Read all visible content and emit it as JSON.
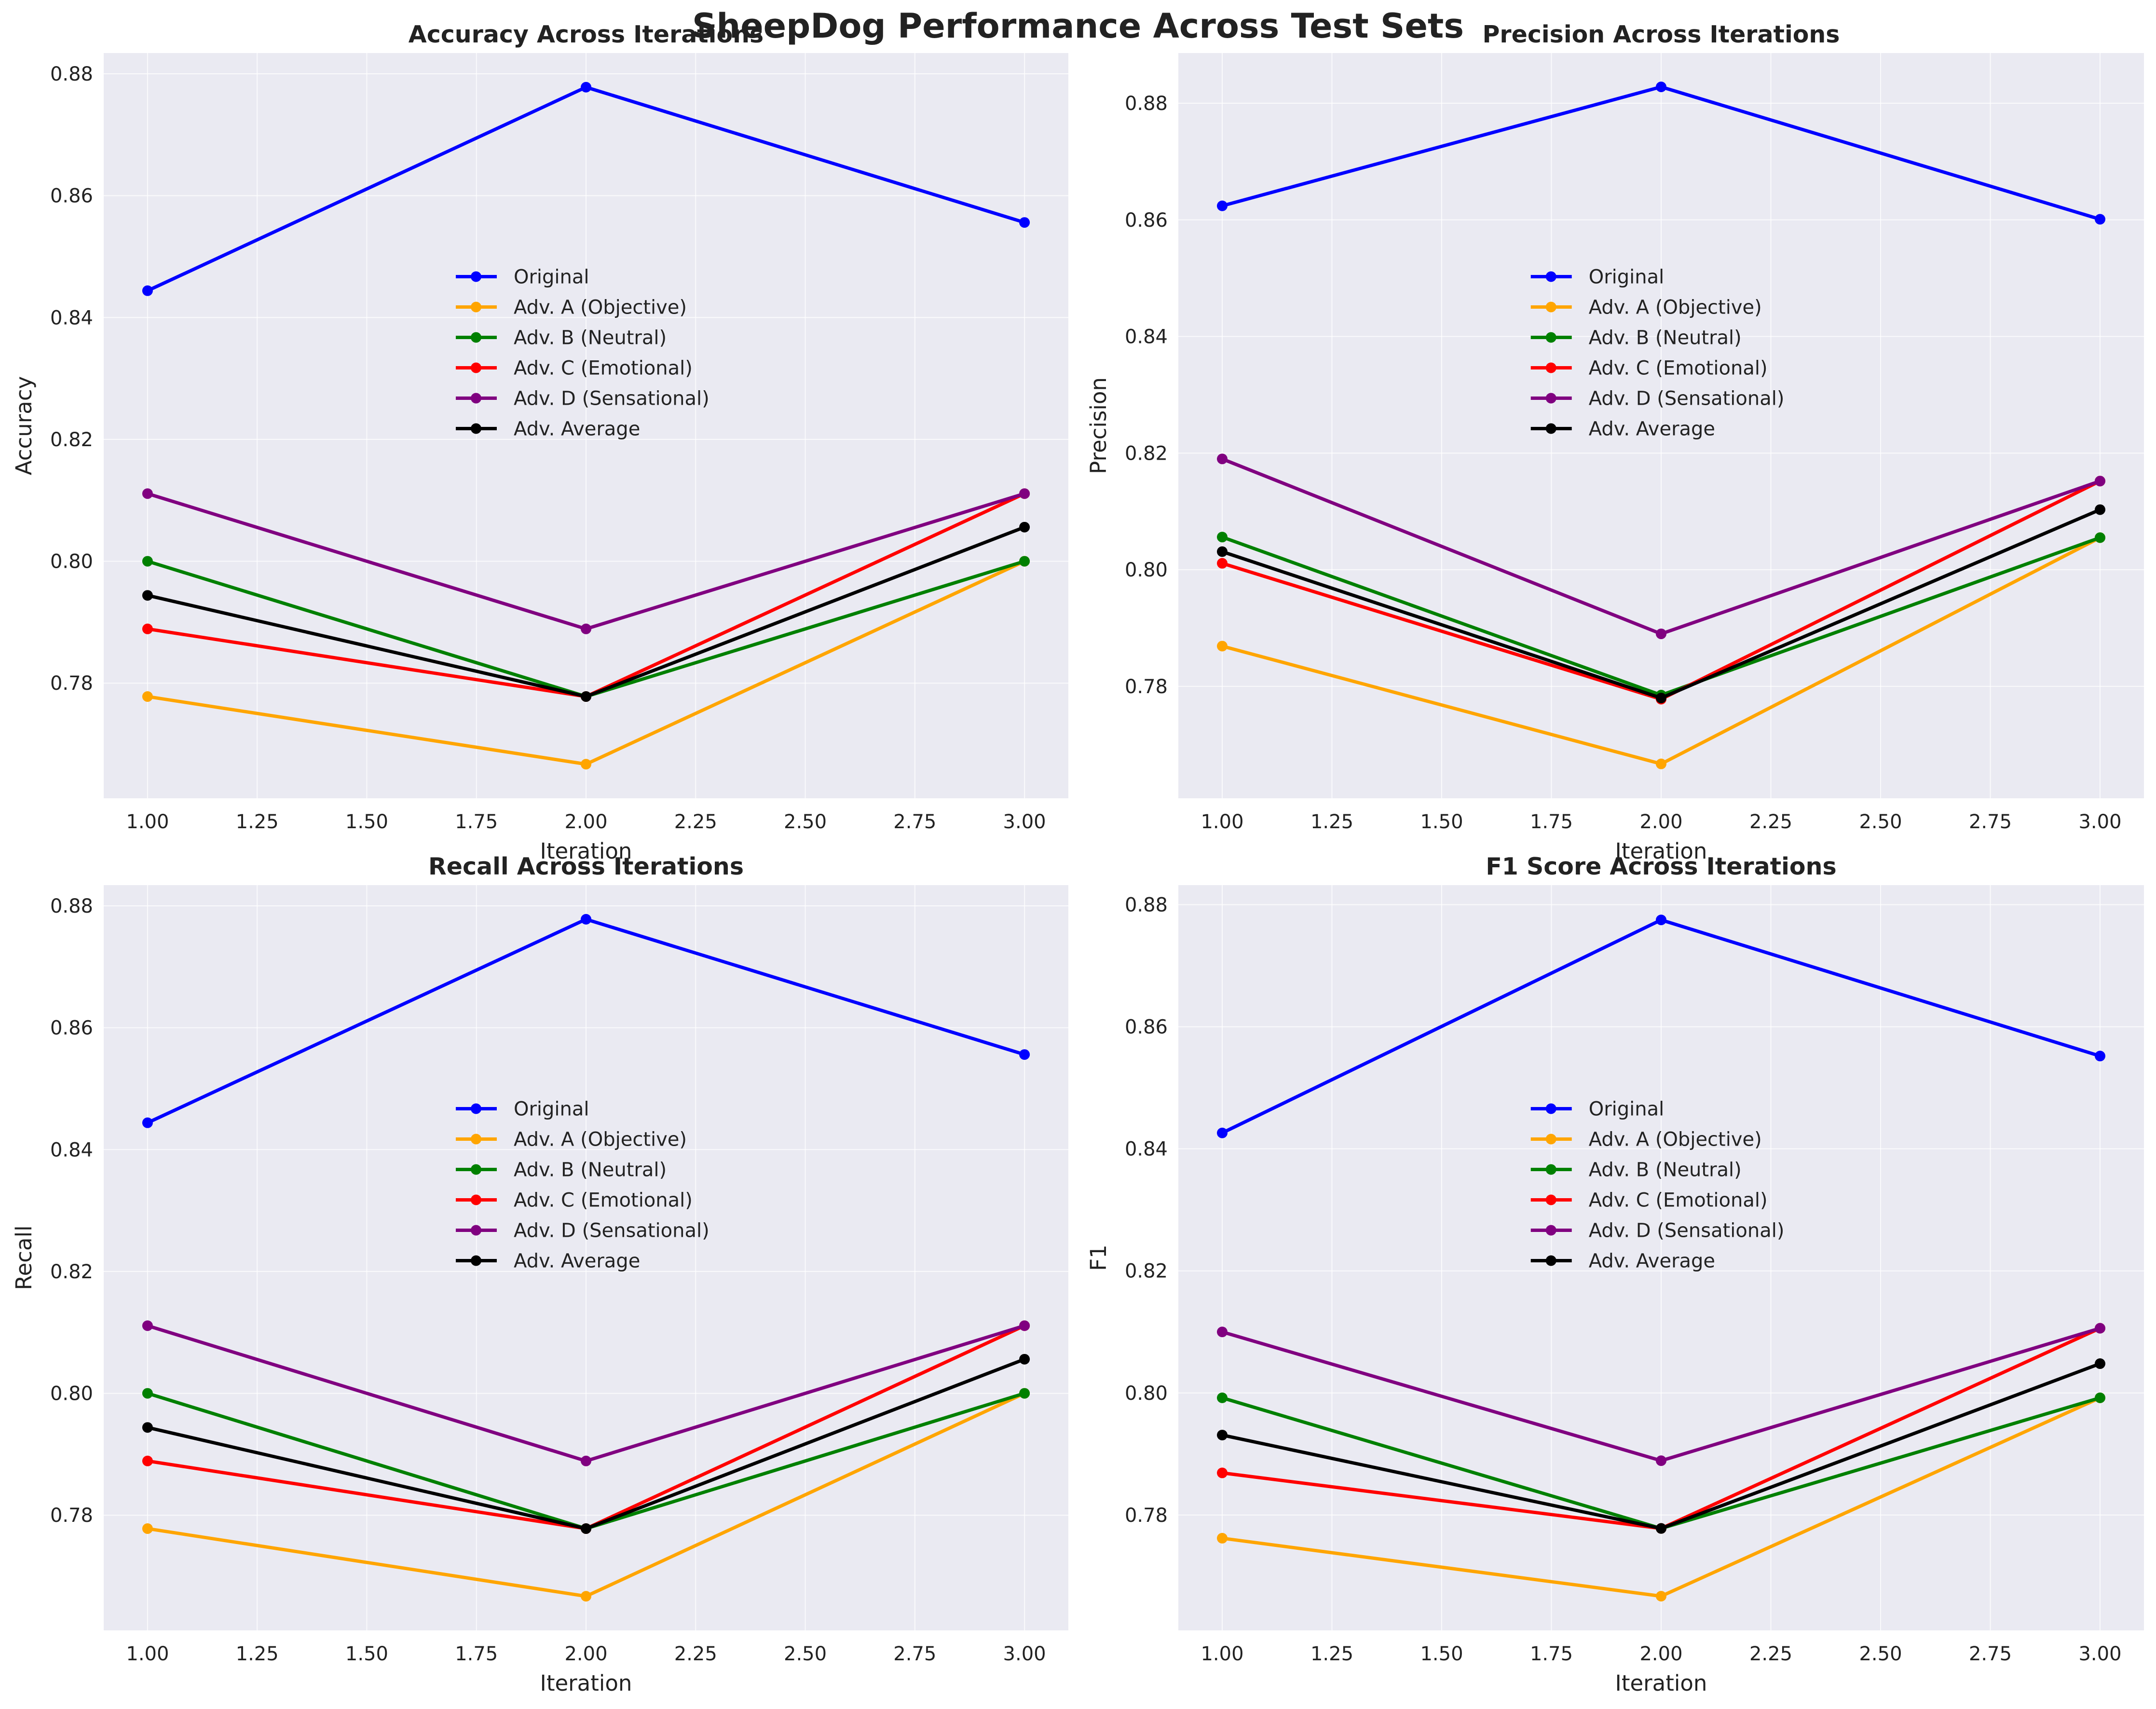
{
  "figure": {
    "title": "SheepDog Performance Across Test Sets",
    "background": "#ffffff",
    "axes_facecolor": "#eaeaf2"
  },
  "chart_data": [
    {
      "type": "line",
      "title": "Accuracy Across Iterations",
      "xlabel": "Iteration",
      "ylabel": "Accuracy",
      "x": [
        1.0,
        2.0,
        3.0
      ],
      "xlim": [
        0.9,
        3.1
      ],
      "ylim": [
        0.7611,
        0.8834
      ],
      "xticks": [
        1.0,
        1.25,
        1.5,
        1.75,
        2.0,
        2.25,
        2.5,
        2.75,
        3.0
      ],
      "yticks": [
        0.78,
        0.8,
        0.82,
        0.84,
        0.86,
        0.88
      ],
      "grid": true,
      "legend_position": "center",
      "series": [
        {
          "name": "Original",
          "color": "#0000ff",
          "values": [
            0.8444,
            0.8778,
            0.8556
          ]
        },
        {
          "name": "Adv. A (Objective)",
          "color": "#ffa500",
          "values": [
            0.7778,
            0.7667,
            0.8
          ]
        },
        {
          "name": "Adv. B (Neutral)",
          "color": "#008000",
          "values": [
            0.8,
            0.7778,
            0.8
          ]
        },
        {
          "name": "Adv. C (Emotional)",
          "color": "#ff0000",
          "values": [
            0.7889,
            0.7778,
            0.8111
          ]
        },
        {
          "name": "Adv. D (Sensational)",
          "color": "#800080",
          "values": [
            0.8111,
            0.7889,
            0.8111
          ]
        },
        {
          "name": "Adv. Average",
          "color": "#000000",
          "values": [
            0.7944,
            0.7778,
            0.8056
          ]
        }
      ]
    },
    {
      "type": "line",
      "title": "Precision Across Iterations",
      "xlabel": "Iteration",
      "ylabel": "Precision",
      "x": [
        1.0,
        2.0,
        3.0
      ],
      "xlim": [
        0.9,
        3.1
      ],
      "ylim": [
        0.7608,
        0.8886
      ],
      "xticks": [
        1.0,
        1.25,
        1.5,
        1.75,
        2.0,
        2.25,
        2.5,
        2.75,
        3.0
      ],
      "yticks": [
        0.78,
        0.8,
        0.82,
        0.84,
        0.86,
        0.88
      ],
      "grid": true,
      "legend_position": "center",
      "series": [
        {
          "name": "Original",
          "color": "#0000ff",
          "values": [
            0.8624,
            0.8828,
            0.8601
          ]
        },
        {
          "name": "Adv. A (Objective)",
          "color": "#ffa500",
          "values": [
            0.7869,
            0.7667,
            0.8055
          ]
        },
        {
          "name": "Adv. B (Neutral)",
          "color": "#008000",
          "values": [
            0.8056,
            0.7785,
            0.8055
          ]
        },
        {
          "name": "Adv. C (Emotional)",
          "color": "#ff0000",
          "values": [
            0.8011,
            0.7778,
            0.8152
          ]
        },
        {
          "name": "Adv. D (Sensational)",
          "color": "#800080",
          "values": [
            0.819,
            0.789,
            0.8152
          ]
        },
        {
          "name": "Adv. Average",
          "color": "#000000",
          "values": [
            0.8031,
            0.778,
            0.8103
          ]
        }
      ]
    },
    {
      "type": "line",
      "title": "Recall Across Iterations",
      "xlabel": "Iteration",
      "ylabel": "Recall",
      "x": [
        1.0,
        2.0,
        3.0
      ],
      "xlim": [
        0.9,
        3.1
      ],
      "ylim": [
        0.7611,
        0.8834
      ],
      "xticks": [
        1.0,
        1.25,
        1.5,
        1.75,
        2.0,
        2.25,
        2.5,
        2.75,
        3.0
      ],
      "yticks": [
        0.78,
        0.8,
        0.82,
        0.84,
        0.86,
        0.88
      ],
      "grid": true,
      "legend_position": "center",
      "series": [
        {
          "name": "Original",
          "color": "#0000ff",
          "values": [
            0.8444,
            0.8778,
            0.8556
          ]
        },
        {
          "name": "Adv. A (Objective)",
          "color": "#ffa500",
          "values": [
            0.7778,
            0.7667,
            0.8
          ]
        },
        {
          "name": "Adv. B (Neutral)",
          "color": "#008000",
          "values": [
            0.8,
            0.7778,
            0.8
          ]
        },
        {
          "name": "Adv. C (Emotional)",
          "color": "#ff0000",
          "values": [
            0.7889,
            0.7778,
            0.8111
          ]
        },
        {
          "name": "Adv. D (Sensational)",
          "color": "#800080",
          "values": [
            0.8111,
            0.7889,
            0.8111
          ]
        },
        {
          "name": "Adv. Average",
          "color": "#000000",
          "values": [
            0.7944,
            0.7778,
            0.8056
          ]
        }
      ]
    },
    {
      "type": "line",
      "title": "F1 Score Across Iterations",
      "xlabel": "Iteration",
      "ylabel": "F1",
      "x": [
        1.0,
        2.0,
        3.0
      ],
      "xlim": [
        0.9,
        3.1
      ],
      "ylim": [
        0.7611,
        0.8832
      ],
      "xticks": [
        1.0,
        1.25,
        1.5,
        1.75,
        2.0,
        2.25,
        2.5,
        2.75,
        3.0
      ],
      "yticks": [
        0.78,
        0.8,
        0.82,
        0.84,
        0.86,
        0.88
      ],
      "grid": true,
      "legend_position": "center",
      "series": [
        {
          "name": "Original",
          "color": "#0000ff",
          "values": [
            0.8426,
            0.8775,
            0.8552
          ]
        },
        {
          "name": "Adv. A (Objective)",
          "color": "#ffa500",
          "values": [
            0.7762,
            0.7667,
            0.7992
          ]
        },
        {
          "name": "Adv. B (Neutral)",
          "color": "#008000",
          "values": [
            0.7992,
            0.7778,
            0.7992
          ]
        },
        {
          "name": "Adv. C (Emotional)",
          "color": "#ff0000",
          "values": [
            0.7869,
            0.7778,
            0.8106
          ]
        },
        {
          "name": "Adv. D (Sensational)",
          "color": "#800080",
          "values": [
            0.81,
            0.7889,
            0.8106
          ]
        },
        {
          "name": "Adv. Average",
          "color": "#000000",
          "values": [
            0.7931,
            0.7778,
            0.8048
          ]
        }
      ]
    }
  ]
}
